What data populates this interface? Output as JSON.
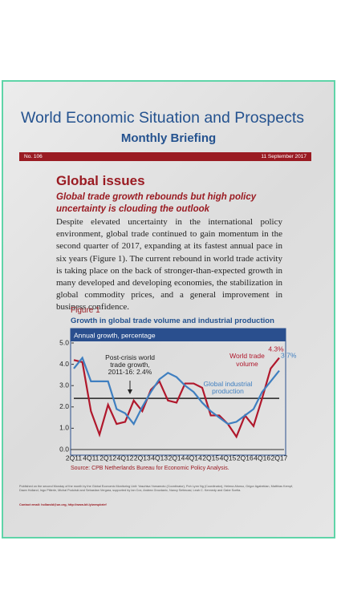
{
  "header": {
    "title": "World Economic Situation and Prospects",
    "subtitle": "Monthly Briefing",
    "number": "No. 106",
    "date": "11 September 2017"
  },
  "section": {
    "heading": "Global issues",
    "subheading": "Global trade growth rebounds but high policy uncertainty is clouding the outlook",
    "paragraph": "Despite elevated uncertainty in the international policy environment, global trade continued to gain momentum in the second quarter of 2017, expanding at its fastest annual pace in six years (Figure 1). The current rebound in world trade activity is taking place on the back of stronger-than-expected growth in many developed and developing economies, the stabilization in global commodity prices, and a general improvement in business confidence."
  },
  "figure": {
    "label": "Figure 1",
    "title": "Growth in global trade volume and industrial production",
    "source": "Source: CPB Netherlands Bureau for Economic Policy Analysis."
  },
  "chart_data": {
    "type": "line",
    "subtitle": "Annual growth, percentage",
    "categories": [
      "2Q11",
      null,
      "4Q11",
      null,
      "2Q12",
      null,
      "4Q12",
      null,
      "2Q13",
      null,
      "4Q13",
      null,
      "2Q14",
      null,
      "4Q14",
      null,
      "2Q15",
      null,
      "4Q15",
      null,
      "2Q16",
      null,
      "4Q16",
      null,
      "2Q17"
    ],
    "series": [
      {
        "name": [
          "World trade",
          "volume"
        ],
        "color": "#b0182c",
        "end_label": "4.3%",
        "values": [
          4.2,
          4.1,
          1.8,
          0.7,
          2.1,
          1.2,
          1.3,
          2.3,
          1.8,
          2.8,
          3.2,
          2.3,
          2.2,
          3.1,
          3.1,
          2.9,
          1.6,
          1.6,
          1.2,
          0.6,
          1.6,
          1.1,
          2.4,
          3.8,
          4.3
        ]
      },
      {
        "name": [
          "Global industrial",
          "production"
        ],
        "color": "#3f7fc0",
        "end_label": "3.7%",
        "values": [
          3.8,
          4.3,
          3.2,
          3.2,
          3.2,
          1.9,
          1.7,
          1.2,
          2.0,
          2.7,
          3.3,
          3.6,
          3.4,
          3.0,
          2.7,
          2.2,
          1.8,
          1.5,
          1.2,
          1.3,
          1.6,
          1.9,
          2.7,
          3.2,
          3.7
        ]
      }
    ],
    "average": {
      "value": 2.4,
      "label": [
        "Post-crisis world",
        "trade growth,",
        "2011-16: 2.4%"
      ]
    },
    "ylim": [
      0,
      5
    ],
    "yticks": [
      {
        "value": 0,
        "label": "0.0"
      },
      {
        "value": 1,
        "label": "1.0"
      },
      {
        "value": 2,
        "label": "2.0"
      },
      {
        "value": 3,
        "label": "3.0"
      },
      {
        "value": 4,
        "label": "4.0"
      },
      {
        "value": 5,
        "label": "5.0"
      }
    ]
  },
  "footer": {
    "text": "Published on the second Monday of the month by the Global Economic Monitoring Unit: Yasuhisa Yamamoto (Coordinator), Poh Lynn Ng (Coordinator), Helena Afonso, Grigor Agabekian, Matthias Kempf, Dawn Holland, Ingo Pitterle, Michal Podolski and Sebastian Vergara, supported by Ian Cox, Andrea Grozdanic, Nancy Settecasi, Leah C. Kennedy and Gabe Scelta.",
    "contact": "Contact email: hollandd@un.org, http://www.bit.ly/wespbrief"
  }
}
